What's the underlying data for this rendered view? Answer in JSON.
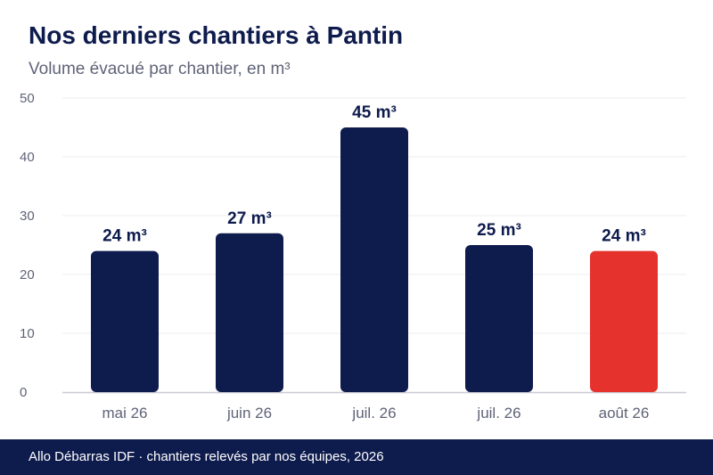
{
  "header": {
    "title": "Nos derniers chantiers à Pantin",
    "subtitle": "Volume évacué par chantier, en m³"
  },
  "footer": {
    "source": "Allo Débarras IDF · chantiers relevés par nos équipes, 2026"
  },
  "colors": {
    "bar": "#0e1b4d",
    "highlight": "#e5322d",
    "grid": "#ececf0",
    "axis": "#c9cad6"
  },
  "chart_data": {
    "type": "bar",
    "title": "Nos derniers chantiers à Pantin",
    "subtitle": "Volume évacué par chantier, en m³",
    "xlabel": "",
    "ylabel": "",
    "categories": [
      "mai 26",
      "juin 26",
      "juil. 26",
      "juil. 26",
      "août 26"
    ],
    "values": [
      24,
      27,
      45,
      25,
      24
    ],
    "data_labels": [
      "24 m³",
      "27 m³",
      "45 m³",
      "25 m³",
      "24 m³"
    ],
    "highlight_index": 4,
    "ylim": [
      0,
      50
    ],
    "yticks": [
      0,
      10,
      20,
      30,
      40,
      50
    ],
    "grid": true,
    "legend": "none"
  }
}
